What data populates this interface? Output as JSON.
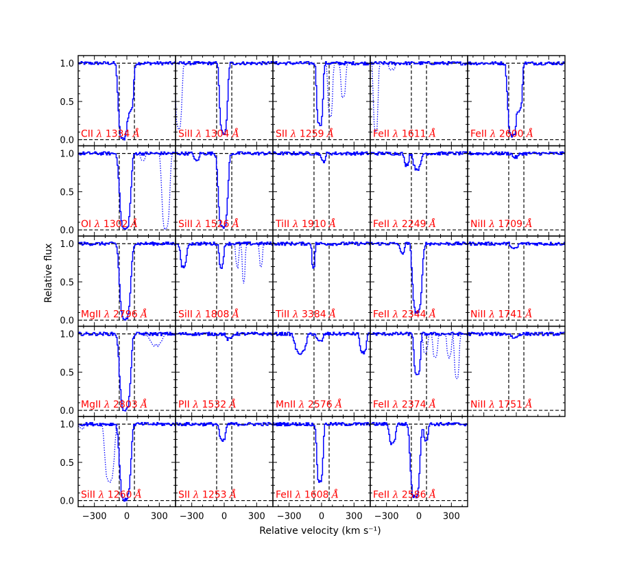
{
  "chart_data": {
    "type": "line",
    "xlabel": "Relative velocity (km s⁻¹)",
    "ylabel": "Relative flux",
    "xlim": [
      -450,
      450
    ],
    "ylim": [
      -0.08,
      1.1
    ],
    "xticks": [
      -300,
      0,
      300
    ],
    "xtick_labels": [
      "−300",
      "0",
      "300"
    ],
    "yticks": [
      0.0,
      0.5,
      1.0
    ],
    "ytick_labels": [
      "0.0",
      "0.5",
      "1.0"
    ],
    "guide_lines": {
      "velocity_window": [
        -70,
        70
      ],
      "levels": [
        0.0,
        1.0
      ]
    },
    "colors": {
      "spectrum": "#0000ff",
      "label": "#ff0000",
      "guides": "#000000"
    },
    "grid": false,
    "panels": [
      {
        "ion": "CII",
        "lambda": "1334",
        "cell": [
          0,
          0
        ],
        "absorption": [
          {
            "v": -40,
            "w": 30,
            "d": 0.99
          },
          {
            "v": 30,
            "w": 20,
            "d": 0.6
          }
        ],
        "blend": []
      },
      {
        "ion": "SiII",
        "lambda": "1304",
        "cell": [
          0,
          1
        ],
        "absorption": [
          {
            "v": -10,
            "w": 25,
            "d": 0.92
          }
        ],
        "blend": [
          {
            "v": -420,
            "w": 20,
            "d": 0.85
          }
        ]
      },
      {
        "ion": "SII",
        "lambda": "1259",
        "cell": [
          0,
          2
        ],
        "absorption": [
          {
            "v": -20,
            "w": 20,
            "d": 0.8
          }
        ],
        "blend": [
          {
            "v": 80,
            "w": 15,
            "d": 0.7
          },
          {
            "v": 200,
            "w": 15,
            "d": 0.45
          }
        ]
      },
      {
        "ion": "FeII",
        "lambda": "1611",
        "cell": [
          0,
          3
        ],
        "absorption": [],
        "blend": [
          {
            "v": -400,
            "w": 15,
            "d": 0.9
          },
          {
            "v": -250,
            "w": 20,
            "d": 0.08
          }
        ]
      },
      {
        "ion": "FeII",
        "lambda": "2600",
        "cell": [
          0,
          4
        ],
        "absorption": [
          {
            "v": -40,
            "w": 30,
            "d": 0.95
          },
          {
            "v": 30,
            "w": 15,
            "d": 0.6
          }
        ],
        "blend": []
      },
      {
        "ion": "OI",
        "lambda": "1302",
        "cell": [
          1,
          0
        ],
        "absorption": [
          {
            "v": -20,
            "w": 35,
            "d": 0.99
          }
        ],
        "blend": [
          {
            "v": 150,
            "w": 15,
            "d": 0.08
          },
          {
            "v": 360,
            "w": 25,
            "d": 0.99
          }
        ]
      },
      {
        "ion": "SiII",
        "lambda": "1526",
        "cell": [
          1,
          1
        ],
        "absorption": [
          {
            "v": -15,
            "w": 30,
            "d": 0.97
          },
          {
            "v": -260,
            "w": 15,
            "d": 0.1
          }
        ],
        "blend": []
      },
      {
        "ion": "TiII",
        "lambda": "1910",
        "cell": [
          1,
          2
        ],
        "absorption": [
          {
            "v": 10,
            "w": 15,
            "d": 0.1
          }
        ],
        "blend": []
      },
      {
        "ion": "FeII",
        "lambda": "2249",
        "cell": [
          1,
          3
        ],
        "absorption": [
          {
            "v": -20,
            "w": 25,
            "d": 0.2
          },
          {
            "v": -120,
            "w": 15,
            "d": 0.15
          }
        ],
        "blend": []
      },
      {
        "ion": "NiII",
        "lambda": "1709",
        "cell": [
          1,
          4
        ],
        "absorption": [
          {
            "v": -10,
            "w": 20,
            "d": 0.05
          }
        ],
        "blend": []
      },
      {
        "ion": "MgII",
        "lambda": "2796",
        "cell": [
          2,
          0
        ],
        "absorption": [
          {
            "v": -20,
            "w": 35,
            "d": 0.99
          }
        ],
        "blend": []
      },
      {
        "ion": "SiII",
        "lambda": "1808",
        "cell": [
          2,
          1
        ],
        "absorption": [
          {
            "v": -380,
            "w": 20,
            "d": 0.3
          },
          {
            "v": -30,
            "w": 15,
            "d": 0.3
          }
        ],
        "blend": [
          {
            "v": 120,
            "w": 10,
            "d": 0.3
          },
          {
            "v": 180,
            "w": 10,
            "d": 0.5
          },
          {
            "v": 340,
            "w": 10,
            "d": 0.3
          }
        ]
      },
      {
        "ion": "TiII",
        "lambda": "3384",
        "cell": [
          2,
          2
        ],
        "absorption": [
          {
            "v": -80,
            "w": 10,
            "d": 0.3
          }
        ],
        "blend": []
      },
      {
        "ion": "FeII",
        "lambda": "2344",
        "cell": [
          2,
          3
        ],
        "absorption": [
          {
            "v": -20,
            "w": 30,
            "d": 0.9
          },
          {
            "v": -160,
            "w": 15,
            "d": 0.12
          }
        ],
        "blend": []
      },
      {
        "ion": "NiII",
        "lambda": "1741",
        "cell": [
          2,
          4
        ],
        "absorption": [
          {
            "v": -20,
            "w": 20,
            "d": 0.07
          }
        ],
        "blend": []
      },
      {
        "ion": "MgII",
        "lambda": "2803",
        "cell": [
          3,
          0
        ],
        "absorption": [
          {
            "v": -20,
            "w": 35,
            "d": 0.99
          }
        ],
        "blend": [
          {
            "v": 270,
            "w": 40,
            "d": 0.15
          }
        ]
      },
      {
        "ion": "PII",
        "lambda": "1532",
        "cell": [
          3,
          1
        ],
        "absorption": [
          {
            "v": 40,
            "w": 20,
            "d": 0.07
          }
        ],
        "blend": []
      },
      {
        "ion": "MnII",
        "lambda": "2576",
        "cell": [
          3,
          2
        ],
        "absorption": [
          {
            "v": -200,
            "w": 35,
            "d": 0.25
          },
          {
            "v": -20,
            "w": 20,
            "d": 0.1
          },
          {
            "v": 380,
            "w": 20,
            "d": 0.25
          }
        ],
        "blend": []
      },
      {
        "ion": "FeII",
        "lambda": "2374",
        "cell": [
          3,
          3
        ],
        "absorption": [
          {
            "v": -20,
            "w": 20,
            "d": 0.55
          }
        ],
        "blend": [
          {
            "v": 60,
            "w": 15,
            "d": 0.25
          },
          {
            "v": 150,
            "w": 15,
            "d": 0.3
          },
          {
            "v": 280,
            "w": 15,
            "d": 0.3
          },
          {
            "v": 350,
            "w": 15,
            "d": 0.6
          }
        ]
      },
      {
        "ion": "NiII",
        "lambda": "1751",
        "cell": [
          3,
          4
        ],
        "absorption": [
          {
            "v": -20,
            "w": 20,
            "d": 0.05
          }
        ],
        "blend": []
      },
      {
        "ion": "SiII",
        "lambda": "1260",
        "cell": [
          4,
          0
        ],
        "absorption": [
          {
            "v": -20,
            "w": 35,
            "d": 0.99
          }
        ],
        "blend": [
          {
            "v": -420,
            "w": 20,
            "d": 0.05
          },
          {
            "v": -160,
            "w": 30,
            "d": 0.75
          }
        ]
      },
      {
        "ion": "SII",
        "lambda": "1253",
        "cell": [
          4,
          1
        ],
        "absorption": [
          {
            "v": -20,
            "w": 20,
            "d": 0.22
          }
        ],
        "blend": []
      },
      {
        "ion": "FeII",
        "lambda": "1608",
        "cell": [
          4,
          2
        ],
        "absorption": [
          {
            "v": -20,
            "w": 20,
            "d": 0.75
          }
        ],
        "blend": []
      },
      {
        "ion": "FeII",
        "lambda": "2586",
        "cell": [
          4,
          3
        ],
        "absorption": [
          {
            "v": -40,
            "w": 30,
            "d": 0.95
          },
          {
            "v": -250,
            "w": 20,
            "d": 0.25
          },
          {
            "v": 60,
            "w": 15,
            "d": 0.2
          }
        ],
        "blend": []
      }
    ]
  }
}
